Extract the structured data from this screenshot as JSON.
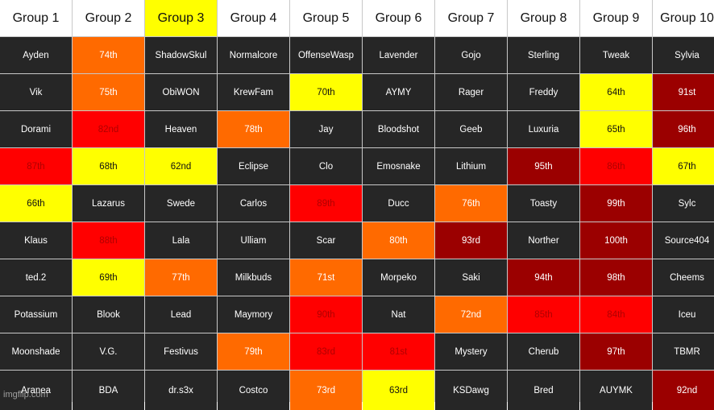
{
  "colors": {
    "dark": "#262626",
    "orange": "#ff6a00",
    "yellow": "#ffff00",
    "red": "#ff0000",
    "maroon": "#9b0000",
    "header": "#ffffff"
  },
  "headers": [
    {
      "label": "Group 1",
      "color": "header"
    },
    {
      "label": "Group 2",
      "color": "header"
    },
    {
      "label": "Group 3",
      "color": "yellow"
    },
    {
      "label": "Group 4",
      "color": "header"
    },
    {
      "label": "Group 5",
      "color": "header"
    },
    {
      "label": "Group 6",
      "color": "header"
    },
    {
      "label": "Group 7",
      "color": "header"
    },
    {
      "label": "Group 8",
      "color": "header"
    },
    {
      "label": "Group 9",
      "color": "header"
    },
    {
      "label": "Group 10",
      "color": "header"
    }
  ],
  "rows": [
    [
      {
        "text": "Ayden",
        "color": "dark"
      },
      {
        "text": "74th",
        "color": "orange"
      },
      {
        "text": "ShadowSkul",
        "color": "dark"
      },
      {
        "text": "Normalcore",
        "color": "dark"
      },
      {
        "text": "OffenseWasp",
        "color": "dark"
      },
      {
        "text": "Lavender",
        "color": "dark"
      },
      {
        "text": "Gojo",
        "color": "dark"
      },
      {
        "text": "Sterling",
        "color": "dark"
      },
      {
        "text": "Tweak",
        "color": "dark"
      },
      {
        "text": "Sylvia",
        "color": "dark"
      }
    ],
    [
      {
        "text": "Vik",
        "color": "dark"
      },
      {
        "text": "75th",
        "color": "orange"
      },
      {
        "text": "ObiWON",
        "color": "dark"
      },
      {
        "text": "KrewFam",
        "color": "dark"
      },
      {
        "text": "70th",
        "color": "yellow"
      },
      {
        "text": "AYMY",
        "color": "dark"
      },
      {
        "text": "Rager",
        "color": "dark"
      },
      {
        "text": "Freddy",
        "color": "dark"
      },
      {
        "text": "64th",
        "color": "yellow"
      },
      {
        "text": "91st",
        "color": "maroon"
      }
    ],
    [
      {
        "text": "Dorami",
        "color": "dark"
      },
      {
        "text": "82nd",
        "color": "red"
      },
      {
        "text": "Heaven",
        "color": "dark"
      },
      {
        "text": "78th",
        "color": "orange"
      },
      {
        "text": "Jay",
        "color": "dark"
      },
      {
        "text": "Bloodshot",
        "color": "dark"
      },
      {
        "text": "Geeb",
        "color": "dark"
      },
      {
        "text": "Luxuria",
        "color": "dark"
      },
      {
        "text": "65th",
        "color": "yellow"
      },
      {
        "text": "96th",
        "color": "maroon"
      }
    ],
    [
      {
        "text": "87th",
        "color": "red"
      },
      {
        "text": "68th",
        "color": "yellow"
      },
      {
        "text": "62nd",
        "color": "yellow"
      },
      {
        "text": "Eclipse",
        "color": "dark"
      },
      {
        "text": "Clo",
        "color": "dark"
      },
      {
        "text": "Emosnake",
        "color": "dark"
      },
      {
        "text": "Lithium",
        "color": "dark"
      },
      {
        "text": "95th",
        "color": "maroon"
      },
      {
        "text": "86th",
        "color": "red"
      },
      {
        "text": "67th",
        "color": "yellow"
      }
    ],
    [
      {
        "text": "66th",
        "color": "yellow"
      },
      {
        "text": "Lazarus",
        "color": "dark"
      },
      {
        "text": "Swede",
        "color": "dark"
      },
      {
        "text": "Carlos",
        "color": "dark"
      },
      {
        "text": "89th",
        "color": "red"
      },
      {
        "text": "Ducc",
        "color": "dark"
      },
      {
        "text": "76th",
        "color": "orange"
      },
      {
        "text": "Toasty",
        "color": "dark"
      },
      {
        "text": "99th",
        "color": "maroon"
      },
      {
        "text": "Sylc",
        "color": "dark"
      }
    ],
    [
      {
        "text": "Klaus",
        "color": "dark"
      },
      {
        "text": "88th",
        "color": "red"
      },
      {
        "text": "Lala",
        "color": "dark"
      },
      {
        "text": "Ulliam",
        "color": "dark"
      },
      {
        "text": "Scar",
        "color": "dark"
      },
      {
        "text": "80th",
        "color": "orange"
      },
      {
        "text": "93rd",
        "color": "maroon"
      },
      {
        "text": "Norther",
        "color": "dark"
      },
      {
        "text": "100th",
        "color": "maroon"
      },
      {
        "text": "Source404",
        "color": "dark"
      }
    ],
    [
      {
        "text": "ted.2",
        "color": "dark"
      },
      {
        "text": "69th",
        "color": "yellow"
      },
      {
        "text": "77th",
        "color": "orange"
      },
      {
        "text": "Milkbuds",
        "color": "dark"
      },
      {
        "text": "71st",
        "color": "orange"
      },
      {
        "text": "Morpeko",
        "color": "dark"
      },
      {
        "text": "Saki",
        "color": "dark"
      },
      {
        "text": "94th",
        "color": "maroon"
      },
      {
        "text": "98th",
        "color": "maroon"
      },
      {
        "text": "Cheems",
        "color": "dark"
      }
    ],
    [
      {
        "text": "Potassium",
        "color": "dark"
      },
      {
        "text": "Blook",
        "color": "dark"
      },
      {
        "text": "Lead",
        "color": "dark"
      },
      {
        "text": "Maymory",
        "color": "dark"
      },
      {
        "text": "90th",
        "color": "red"
      },
      {
        "text": "Nat",
        "color": "dark"
      },
      {
        "text": "72nd",
        "color": "orange"
      },
      {
        "text": "85th",
        "color": "red"
      },
      {
        "text": "84th",
        "color": "red"
      },
      {
        "text": "Iceu",
        "color": "dark"
      }
    ],
    [
      {
        "text": "Moonshade",
        "color": "dark"
      },
      {
        "text": "V.G.",
        "color": "dark"
      },
      {
        "text": "Festivus",
        "color": "dark"
      },
      {
        "text": "79th",
        "color": "orange"
      },
      {
        "text": "83rd",
        "color": "red"
      },
      {
        "text": "81st",
        "color": "red"
      },
      {
        "text": "Mystery",
        "color": "dark"
      },
      {
        "text": "Cherub",
        "color": "dark"
      },
      {
        "text": "97th",
        "color": "maroon"
      },
      {
        "text": "TBMR",
        "color": "dark"
      }
    ],
    [
      {
        "text": "Aranea",
        "color": "dark"
      },
      {
        "text": "BDA",
        "color": "dark"
      },
      {
        "text": "dr.s3x",
        "color": "dark"
      },
      {
        "text": "Costco",
        "color": "dark"
      },
      {
        "text": "73rd",
        "color": "orange"
      },
      {
        "text": "63rd",
        "color": "yellow"
      },
      {
        "text": "KSDawg",
        "color": "dark"
      },
      {
        "text": "Bred",
        "color": "dark"
      },
      {
        "text": "AUYMK",
        "color": "dark"
      },
      {
        "text": "92nd",
        "color": "maroon"
      }
    ]
  ],
  "watermark": "imgflip.com"
}
